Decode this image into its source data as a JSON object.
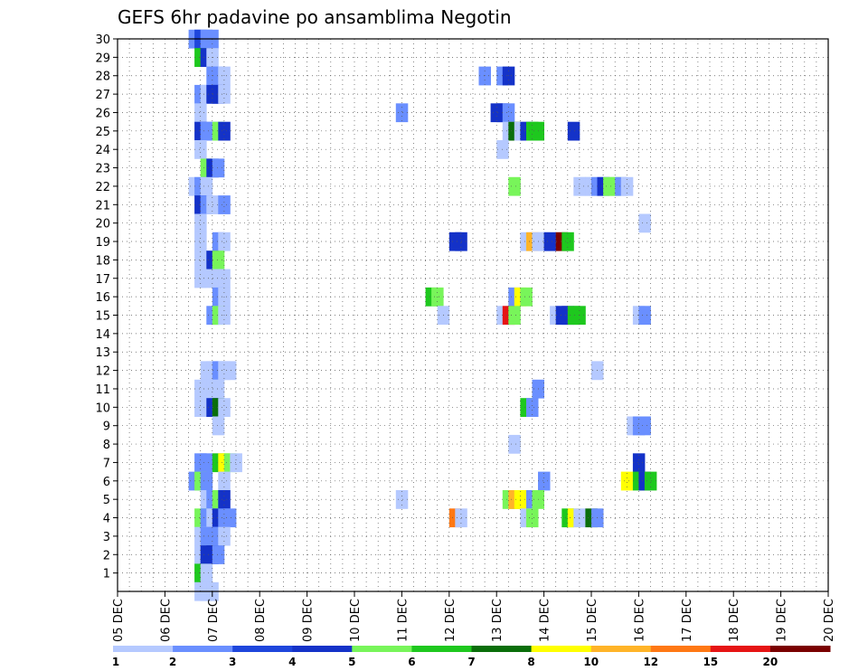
{
  "chart_data": {
    "type": "heatmap",
    "title": "GEFS 6hr padavine po ansamblima Negotin",
    "xlabel": "",
    "ylabel": "",
    "x_ticks": [
      "05 DEC",
      "06 DEC",
      "07 DEC",
      "08 DEC",
      "09 DEC",
      "10 DEC",
      "11 DEC",
      "12 DEC",
      "13 DEC",
      "14 DEC",
      "15 DEC",
      "16 DEC",
      "17 DEC",
      "18 DEC",
      "19 DEC",
      "20 DEC"
    ],
    "y_ticks": [
      1,
      2,
      3,
      4,
      5,
      6,
      7,
      8,
      9,
      10,
      11,
      12,
      13,
      14,
      15,
      16,
      17,
      18,
      19,
      20,
      21,
      22,
      23,
      24,
      25,
      26,
      27,
      28,
      29,
      30
    ],
    "x_range": [
      "05 DEC",
      "20 DEC"
    ],
    "y_range": [
      0,
      30
    ],
    "grid": true,
    "colorbar": {
      "levels": [
        "1",
        "2",
        "3",
        "4",
        "5",
        "6",
        "7",
        "8",
        "10",
        "12",
        "15",
        "20"
      ],
      "colors": [
        "#b5c9ff",
        "#6a8fff",
        "#1e46dc",
        "#1432c8",
        "#78f55a",
        "#1ec81e",
        "#0a6e0a",
        "#ffff00",
        "#ffb428",
        "#ff7814",
        "#e61414",
        "#7a0000"
      ],
      "placement": "bottom"
    },
    "grid_step_hours": 6,
    "cells": [
      {
        "m": 30,
        "c": [
          [
            12,
            1
          ],
          [
            13,
            2
          ],
          [
            14,
            1
          ],
          [
            15,
            1
          ]
        ]
      },
      {
        "m": 29,
        "c": [
          [
            13,
            5
          ],
          [
            14,
            3
          ],
          [
            15,
            0
          ]
        ]
      },
      {
        "m": 28,
        "c": [
          [
            15,
            1
          ],
          [
            16,
            1
          ],
          [
            17,
            0
          ],
          [
            61,
            1
          ],
          [
            64,
            1
          ],
          [
            65,
            3
          ]
        ]
      },
      {
        "m": 27,
        "c": [
          [
            13,
            1
          ],
          [
            14,
            0
          ],
          [
            15,
            3
          ],
          [
            16,
            3
          ],
          [
            17,
            0
          ]
        ]
      },
      {
        "m": 26,
        "c": [
          [
            13,
            0
          ],
          [
            47,
            1
          ],
          [
            63,
            3
          ],
          [
            64,
            3
          ],
          [
            65,
            1
          ]
        ]
      },
      {
        "m": 25,
        "c": [
          [
            13,
            3
          ],
          [
            14,
            1
          ],
          [
            15,
            1
          ],
          [
            16,
            4
          ],
          [
            17,
            3
          ],
          [
            65,
            0
          ],
          [
            66,
            6
          ],
          [
            67,
            0
          ],
          [
            68,
            3
          ],
          [
            69,
            5
          ],
          [
            70,
            5
          ],
          [
            76,
            3
          ]
        ]
      },
      {
        "m": 24,
        "c": [
          [
            13,
            0
          ],
          [
            64,
            0
          ]
        ]
      },
      {
        "m": 23,
        "c": [
          [
            14,
            4
          ],
          [
            15,
            3
          ],
          [
            16,
            1
          ]
        ]
      },
      {
        "m": 22,
        "c": [
          [
            12,
            0
          ],
          [
            13,
            1
          ],
          [
            14,
            0
          ],
          [
            66,
            4
          ],
          [
            77,
            0
          ],
          [
            78,
            0
          ],
          [
            79,
            0
          ],
          [
            80,
            1
          ],
          [
            81,
            3
          ],
          [
            82,
            4
          ],
          [
            83,
            4
          ],
          [
            84,
            1
          ],
          [
            85,
            0
          ]
        ]
      },
      {
        "m": 21,
        "c": [
          [
            13,
            3
          ],
          [
            14,
            1
          ],
          [
            15,
            0
          ],
          [
            17,
            1
          ]
        ]
      },
      {
        "m": 20,
        "c": [
          [
            13,
            0
          ],
          [
            88,
            0
          ]
        ]
      },
      {
        "m": 19,
        "c": [
          [
            13,
            0
          ],
          [
            16,
            1
          ],
          [
            17,
            0
          ],
          [
            56,
            3
          ],
          [
            57,
            3
          ],
          [
            68,
            0
          ],
          [
            69,
            8
          ],
          [
            70,
            0
          ],
          [
            71,
            0
          ],
          [
            72,
            3
          ],
          [
            74,
            11
          ],
          [
            75,
            5
          ]
        ]
      },
      {
        "m": 18,
        "c": [
          [
            13,
            0
          ],
          [
            14,
            0
          ],
          [
            15,
            3
          ],
          [
            16,
            4
          ]
        ]
      },
      {
        "m": 17,
        "c": [
          [
            13,
            0
          ],
          [
            14,
            0
          ],
          [
            16,
            0
          ],
          [
            17,
            0
          ]
        ]
      },
      {
        "m": 16,
        "c": [
          [
            16,
            1
          ],
          [
            17,
            0
          ],
          [
            52,
            5
          ],
          [
            53,
            4
          ],
          [
            66,
            1
          ],
          [
            67,
            7
          ],
          [
            68,
            4
          ]
        ]
      },
      {
        "m": 15,
        "c": [
          [
            15,
            1
          ],
          [
            16,
            4
          ],
          [
            17,
            0
          ],
          [
            54,
            0
          ],
          [
            64,
            0
          ],
          [
            65,
            10
          ],
          [
            66,
            4
          ],
          [
            73,
            0
          ],
          [
            74,
            3
          ],
          [
            75,
            3
          ],
          [
            76,
            5
          ],
          [
            77,
            5
          ],
          [
            87,
            0
          ],
          [
            88,
            1
          ]
        ]
      },
      {
        "m": 14,
        "c": []
      },
      {
        "m": 13,
        "c": []
      },
      {
        "m": 12,
        "c": [
          [
            14,
            0
          ],
          [
            15,
            0
          ],
          [
            16,
            1
          ],
          [
            17,
            0
          ],
          [
            18,
            0
          ],
          [
            80,
            0
          ]
        ]
      },
      {
        "m": 11,
        "c": [
          [
            13,
            0
          ],
          [
            14,
            0
          ],
          [
            15,
            0
          ],
          [
            16,
            0
          ],
          [
            70,
            1
          ]
        ]
      },
      {
        "m": 10,
        "c": [
          [
            13,
            0
          ],
          [
            14,
            0
          ],
          [
            15,
            3
          ],
          [
            16,
            6
          ],
          [
            17,
            0
          ],
          [
            68,
            5
          ],
          [
            69,
            1
          ]
        ]
      },
      {
        "m": 9,
        "c": [
          [
            16,
            0
          ],
          [
            86,
            0
          ],
          [
            87,
            1
          ],
          [
            88,
            1
          ]
        ]
      },
      {
        "m": 8,
        "c": [
          [
            66,
            0
          ]
        ]
      },
      {
        "m": 7,
        "c": [
          [
            13,
            1
          ],
          [
            14,
            1
          ],
          [
            16,
            5
          ],
          [
            17,
            7
          ],
          [
            18,
            4
          ],
          [
            19,
            0
          ],
          [
            87,
            3
          ]
        ]
      },
      {
        "m": 6,
        "c": [
          [
            12,
            1
          ],
          [
            13,
            4
          ],
          [
            14,
            1
          ],
          [
            17,
            0
          ],
          [
            71,
            1
          ],
          [
            85,
            7
          ],
          [
            87,
            5
          ],
          [
            88,
            3
          ],
          [
            89,
            5
          ]
        ]
      },
      {
        "m": 5,
        "c": [
          [
            14,
            0
          ],
          [
            15,
            1
          ],
          [
            16,
            4
          ],
          [
            17,
            3
          ],
          [
            47,
            0
          ],
          [
            65,
            4
          ],
          [
            66,
            8
          ],
          [
            67,
            7
          ],
          [
            69,
            1
          ],
          [
            70,
            4
          ]
        ]
      },
      {
        "m": 4,
        "c": [
          [
            13,
            4
          ],
          [
            14,
            1
          ],
          [
            15,
            0
          ],
          [
            16,
            3
          ],
          [
            17,
            1
          ],
          [
            18,
            1
          ],
          [
            56,
            9
          ],
          [
            57,
            0
          ],
          [
            68,
            0
          ],
          [
            69,
            4
          ],
          [
            75,
            5
          ],
          [
            76,
            7
          ],
          [
            77,
            0
          ],
          [
            79,
            6
          ],
          [
            80,
            1
          ]
        ]
      },
      {
        "m": 3,
        "c": [
          [
            13,
            0
          ],
          [
            14,
            1
          ],
          [
            15,
            1
          ],
          [
            16,
            1
          ],
          [
            17,
            0
          ]
        ]
      },
      {
        "m": 2,
        "c": [
          [
            13,
            0
          ],
          [
            14,
            3
          ],
          [
            15,
            3
          ],
          [
            16,
            1
          ]
        ]
      },
      {
        "m": 1,
        "c": [
          [
            13,
            5
          ],
          [
            14,
            0
          ]
        ]
      },
      {
        "m": 0,
        "c": [
          [
            13,
            0
          ],
          [
            14,
            0
          ],
          [
            15,
            0
          ]
        ]
      }
    ]
  }
}
